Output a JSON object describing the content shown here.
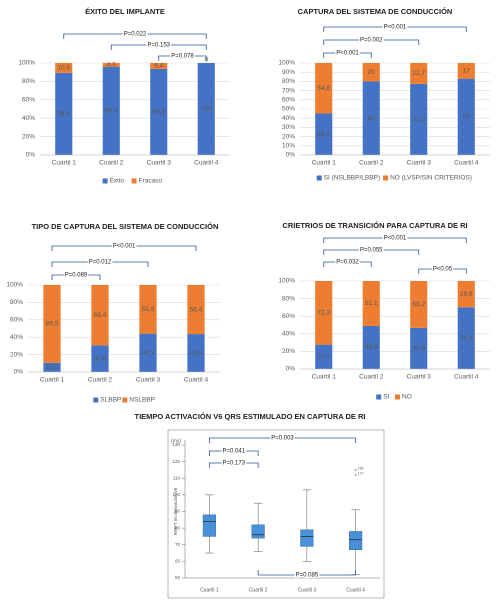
{
  "chart_data": [
    {
      "type": "stacked_bar",
      "title": "ÉXITO DEL IMPLANTE",
      "categories": [
        "Cuartil 1",
        "Cuartil 2",
        "Cuartil 3",
        "Cuartil 4"
      ],
      "series": [
        {
          "name": "Éxito",
          "color": "#4472c4",
          "values": [
            89.4,
            95.7,
            93.6,
            100
          ],
          "value_labels": [
            "89,4",
            "95,7",
            "93,6",
            "100"
          ]
        },
        {
          "name": "Fracaso",
          "color": "#ed7d31",
          "values": [
            10.6,
            4.3,
            6.4,
            0
          ],
          "value_labels": [
            "10,6",
            "4,3",
            "6,4",
            "0"
          ]
        }
      ],
      "ylim": [
        0,
        100
      ],
      "yticks": [
        {
          "value": 0,
          "label": "0%"
        },
        {
          "value": 20,
          "label": "20%"
        },
        {
          "value": 40,
          "label": "40%"
        },
        {
          "value": 60,
          "label": "60%"
        },
        {
          "value": 80,
          "label": "80%"
        },
        {
          "value": 100,
          "label": "100%"
        }
      ],
      "grid": true,
      "annotations": [
        {
          "text": "P=0.022",
          "from": "Cuartil 1",
          "to": "Cuartil 4"
        },
        {
          "text": "P=0.153",
          "from": "Cuartil 2",
          "to": "Cuartil 4"
        },
        {
          "text": "P=0.078",
          "from": "Cuartil 3",
          "to": "Cuartil 4"
        }
      ]
    },
    {
      "type": "stacked_bar",
      "title": "CAPTURA DEL SISTEMA DE CONDUCCIÓN",
      "categories": [
        "Cuartil 1",
        "Cuartil 2",
        "Cuartil 3",
        "Cuartil 4"
      ],
      "series": [
        {
          "name": "SI (NSLBBP/LBBP)",
          "color": "#4472c4",
          "values": [
            45.2,
            80,
            77.3,
            83
          ],
          "value_labels": [
            "45,2",
            "80",
            "77,3",
            "83"
          ]
        },
        {
          "name": "NO (LVSP/SIN CRITERIOS)",
          "color": "#ed7d31",
          "values": [
            54.8,
            20,
            22.7,
            17
          ],
          "value_labels": [
            "54,8",
            "20",
            "22,7",
            "17"
          ]
        }
      ],
      "ylim": [
        0,
        100
      ],
      "yticks": [
        {
          "value": 0,
          "label": "0%"
        },
        {
          "value": 10,
          "label": "10%"
        },
        {
          "value": 20,
          "label": "20%"
        },
        {
          "value": 30,
          "label": "30%"
        },
        {
          "value": 40,
          "label": "40%"
        },
        {
          "value": 50,
          "label": "50%"
        },
        {
          "value": 60,
          "label": "60%"
        },
        {
          "value": 70,
          "label": "70%"
        },
        {
          "value": 80,
          "label": "80%"
        },
        {
          "value": 90,
          "label": "90%"
        },
        {
          "value": 100,
          "label": "100%"
        }
      ],
      "grid": true,
      "annotations": [
        {
          "text": "P<0.001",
          "from": "Cuartil 1",
          "to": "Cuartil 4"
        },
        {
          "text": "P=0.002",
          "from": "Cuartil 1",
          "to": "Cuartil 3"
        },
        {
          "text": "P<0.001",
          "from": "Cuartil 1",
          "to": "Cuartil 2"
        }
      ]
    },
    {
      "type": "stacked_bar",
      "title": "TIPO DE CAPTURA DEL SISTEMA DE CONDUCCIÓN",
      "categories": [
        "Cuartil 1",
        "Cuartil 2",
        "Cuartil 3",
        "Cuartil 4"
      ],
      "series": [
        {
          "name": "SLBBP",
          "color": "#4472c4",
          "values": [
            10.5,
            30.6,
            44.1,
            43.6
          ],
          "value_labels": [
            "10,5",
            "30,6",
            "44,1",
            "43,6"
          ]
        },
        {
          "name": "NSLBBP",
          "color": "#ed7d31",
          "values": [
            89.5,
            69.4,
            55.9,
            56.4
          ],
          "value_labels": [
            "89,5",
            "69,4",
            "55,9",
            "56,4"
          ]
        }
      ],
      "ylim": [
        0,
        100
      ],
      "yticks": [
        {
          "value": 0,
          "label": "0%"
        },
        {
          "value": 20,
          "label": "20%"
        },
        {
          "value": 40,
          "label": "40%"
        },
        {
          "value": 60,
          "label": "60%"
        },
        {
          "value": 80,
          "label": "80%"
        },
        {
          "value": 100,
          "label": "100%"
        }
      ],
      "grid": true,
      "annotations": [
        {
          "text": "P<0.001",
          "from": "Cuartil 1",
          "to": "Cuartil 4"
        },
        {
          "text": "P=0.012",
          "from": "Cuartil 1",
          "to": "Cuartil 3"
        },
        {
          "text": "P=0.089",
          "from": "Cuartil 1",
          "to": "Cuartil 2"
        }
      ]
    },
    {
      "type": "stacked_bar",
      "title": "CRIETRIOS DE TRANSICIÓN PARA CAPTURA DE RI",
      "categories": [
        "Cuartil 1",
        "Cuartil 2",
        "Cuartil 3",
        "Cuartil 4"
      ],
      "series": [
        {
          "name": "SI",
          "color": "#4472c4",
          "values": [
            27.7,
            48.9,
            46.8,
            70.2
          ],
          "value_labels": [
            "27,7",
            "48,9",
            "46,8",
            "70,2"
          ]
        },
        {
          "name": "NO",
          "color": "#ed7d31",
          "values": [
            72.3,
            51.1,
            53.2,
            29.8
          ],
          "value_labels": [
            "72,3",
            "51,1",
            "53,2",
            "29,8"
          ]
        }
      ],
      "ylim": [
        0,
        100
      ],
      "yticks": [
        {
          "value": 0,
          "label": "0%"
        },
        {
          "value": 20,
          "label": "20%"
        },
        {
          "value": 40,
          "label": "40%"
        },
        {
          "value": 60,
          "label": "60%"
        },
        {
          "value": 80,
          "label": "80%"
        },
        {
          "value": 100,
          "label": "100%"
        }
      ],
      "grid": true,
      "annotations": [
        {
          "text": "P<0.001",
          "from": "Cuartil 1",
          "to": "Cuartil 4"
        },
        {
          "text": "P=0.055",
          "from": "Cuartil 1",
          "to": "Cuartil 3"
        },
        {
          "text": "P=0.032",
          "from": "Cuartil 1",
          "to": "Cuartil 2"
        },
        {
          "text": "P<0.05",
          "from": "Cuartil 3",
          "to": "Cuartil 4"
        }
      ]
    },
    {
      "type": "box",
      "title": "TIEMPO ACTIVACIÓN V6 QRS ESTIMULADO EN CAPTURA DE RI",
      "ylabel": "RWPT en derivación V6",
      "unit_label": "(ms)",
      "categories": [
        "Cuartil 1",
        "Cuartil 2",
        "Cuartil 3",
        "Cuartil 4"
      ],
      "color": "#4a90d9",
      "boxes": {
        "min": [
          65,
          66,
          60,
          52
        ],
        "q1": [
          75,
          74,
          69,
          67
        ],
        "median": [
          84,
          76,
          75,
          73
        ],
        "q3": [
          88,
          82,
          79,
          78
        ],
        "max": [
          100,
          95,
          103,
          91
        ]
      },
      "outliers": [
        [],
        [],
        [],
        [
          {
            "value": 115,
            "label": "185"
          },
          {
            "value": 112,
            "label": "177"
          }
        ]
      ],
      "ylim": [
        50,
        130
      ],
      "yticks": [
        50,
        60,
        70,
        80,
        90,
        100,
        110,
        120,
        130
      ],
      "grid": false,
      "annotations": [
        {
          "text": "P=0.003",
          "from": "Cuartil 1",
          "to": "Cuartil 4"
        },
        {
          "text": "P=0.041",
          "from": "Cuartil 1",
          "to": "Cuartil 2"
        },
        {
          "text": "P=0.173",
          "from": "Cuartil 1",
          "to": "Cuartil 2"
        },
        {
          "text": "P=0.085",
          "from": "Cuartil 2",
          "to": "Cuartil 4"
        }
      ]
    }
  ]
}
